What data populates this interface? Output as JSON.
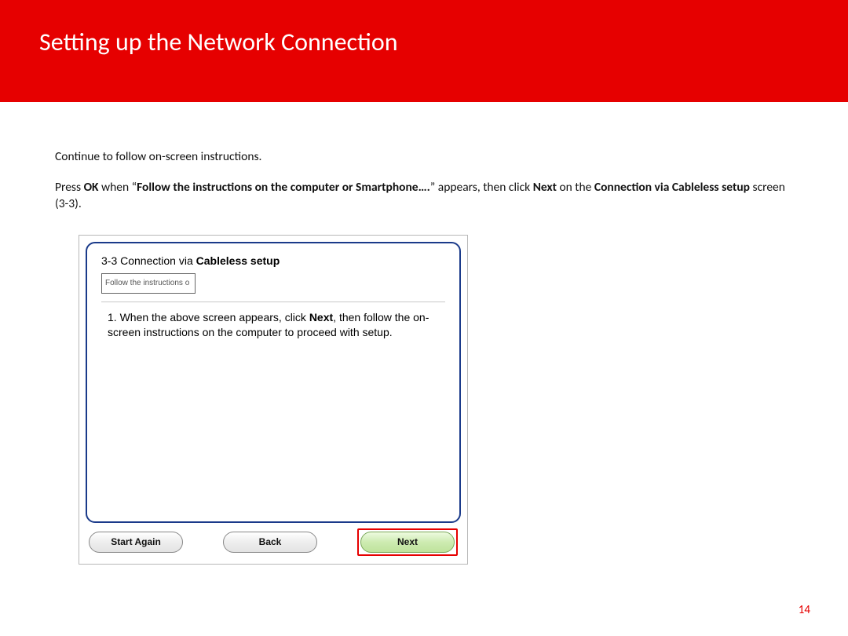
{
  "header": {
    "title": "Setting up the Network Connection",
    "bg_color": "#e60000",
    "title_color": "#ffffff"
  },
  "body": {
    "intro": "Continue to follow on-screen instructions.",
    "instruction_parts": {
      "p1": "Press ",
      "b1": "OK",
      "p2": " when “",
      "b2": "Follow the instructions on the computer or Smartphone….",
      "p3": "” appears, then click ",
      "b3": "Next",
      "p4": " on the ",
      "b4": "Connection via Cableless setup",
      "p5": "  screen (3-3)."
    }
  },
  "dialog": {
    "title_prefix": "3-3 Connection via ",
    "title_bold": "Cableless setup",
    "preview_text": "Follow the instructions o",
    "step_parts": {
      "s1": "1. When the above screen appears, click ",
      "s_b": "Next",
      "s2": ", then follow the on-screen instructions on the computer to proceed with setup."
    },
    "buttons": {
      "start_again": "Start Again",
      "back": "Back",
      "next": "Next"
    },
    "border_color": "#1a3a8a",
    "highlight_color": "#e60000"
  },
  "page_number": "14"
}
